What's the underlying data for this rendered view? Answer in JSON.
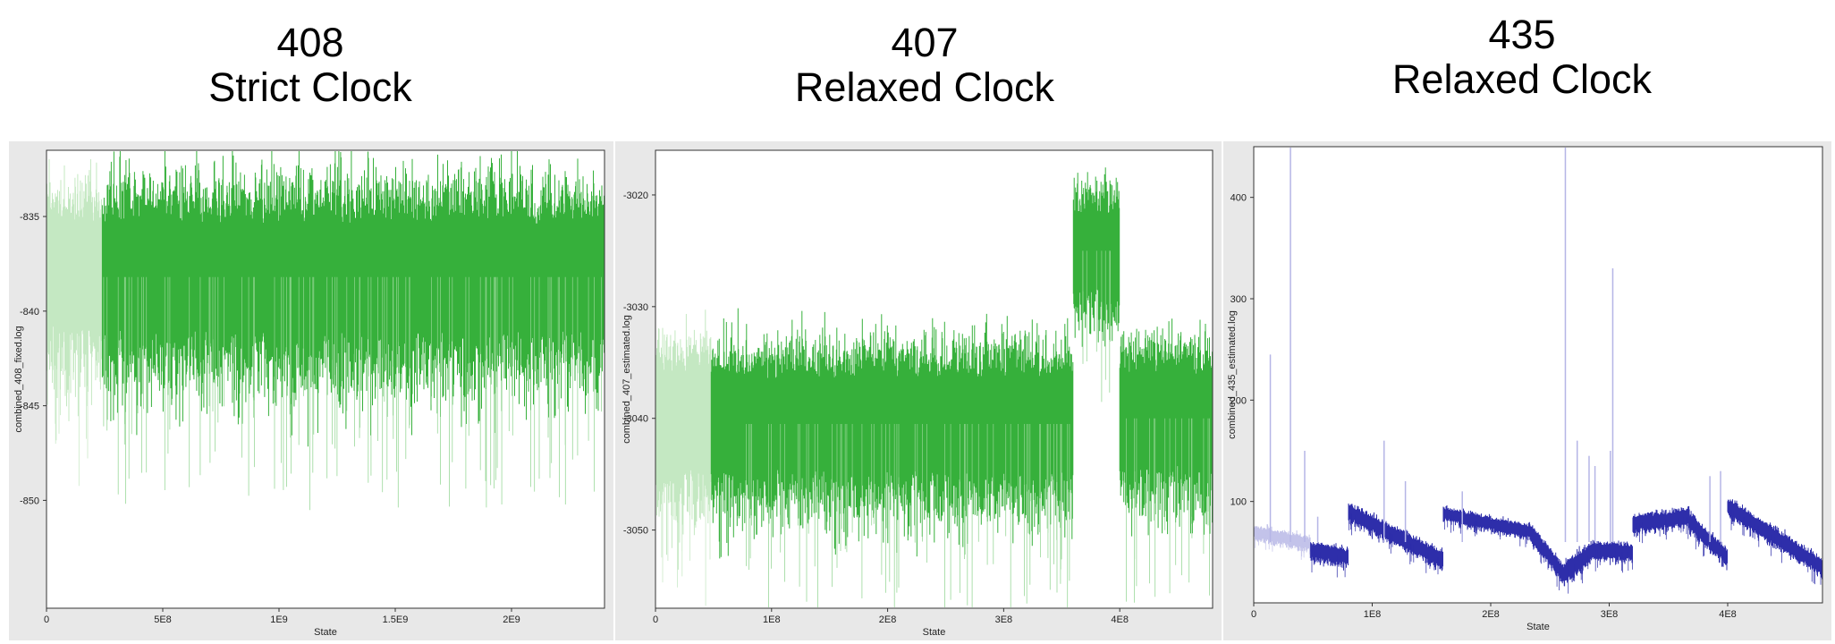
{
  "panels": [
    {
      "id": "408",
      "clock": "Strict Clock"
    },
    {
      "id": "407",
      "clock": "Relaxed Clock"
    },
    {
      "id": "435",
      "clock": "Relaxed Clock"
    }
  ],
  "chart_data": [
    {
      "type": "line",
      "title": "408 Strict Clock",
      "xlabel": "State",
      "ylabel": "combined_408_fixed.log",
      "xlim": [
        0,
        2400000000
      ],
      "ylim": [
        -855.7,
        -831.5
      ],
      "xticks": [
        {
          "v": 0,
          "label": "0"
        },
        {
          "v": 500000000,
          "label": "5E8"
        },
        {
          "v": 1000000000,
          "label": "1E9"
        },
        {
          "v": 1500000000,
          "label": "1.5E9"
        },
        {
          "v": 2000000000,
          "label": "2E9"
        }
      ],
      "yticks": [
        {
          "v": -835,
          "label": "-835"
        },
        {
          "v": -840,
          "label": "-840"
        },
        {
          "v": -845,
          "label": "-845"
        },
        {
          "v": -850,
          "label": "-850"
        }
      ],
      "burnin_end": 240000000,
      "trace_color": "#36b03b",
      "burnin_color": "#c4e8c2",
      "segments": [
        {
          "x": [
            0,
            240000000
          ],
          "mean": -838.0,
          "spread": 2.6,
          "burnin": true
        },
        {
          "x": [
            240000000,
            2400000000
          ],
          "mean": -838.2,
          "spread": 2.8,
          "burnin": false
        }
      ]
    },
    {
      "type": "line",
      "title": "407 Relaxed Clock",
      "xlabel": "State",
      "ylabel": "combined_407_estimated.log",
      "xlim": [
        0,
        480000000
      ],
      "ylim": [
        -3057,
        -3016
      ],
      "xticks": [
        {
          "v": 0,
          "label": "0"
        },
        {
          "v": 100000000,
          "label": "1E8"
        },
        {
          "v": 200000000,
          "label": "2E8"
        },
        {
          "v": 300000000,
          "label": "3E8"
        },
        {
          "v": 400000000,
          "label": "4E8"
        }
      ],
      "yticks": [
        {
          "v": -3020,
          "label": "-3020"
        },
        {
          "v": -3030,
          "label": "-3030"
        },
        {
          "v": -3040,
          "label": "-3040"
        },
        {
          "v": -3050,
          "label": "-3050"
        }
      ],
      "burnin_end": 48000000,
      "trace_color": "#36b03b",
      "burnin_color": "#c4e8c2",
      "segments": [
        {
          "x": [
            0,
            48000000
          ],
          "mean": -3040.0,
          "spread": 4.0,
          "burnin": true
        },
        {
          "x": [
            48000000,
            360000000
          ],
          "mean": -3040.5,
          "spread": 4.0,
          "burnin": false
        },
        {
          "x": [
            360000000,
            400000000
          ],
          "mean": -3025.0,
          "spread": 3.2,
          "burnin": false
        },
        {
          "x": [
            400000000,
            480000000
          ],
          "mean": -3040.0,
          "spread": 4.0,
          "burnin": false
        }
      ]
    },
    {
      "type": "line",
      "title": "435 Relaxed Clock",
      "xlabel": "State",
      "ylabel": "combined_435_estimated.log",
      "xlim": [
        0,
        480000000
      ],
      "ylim": [
        0,
        450
      ],
      "xticks": [
        {
          "v": 0,
          "label": "0"
        },
        {
          "v": 100000000,
          "label": "1E8"
        },
        {
          "v": 200000000,
          "label": "2E8"
        },
        {
          "v": 300000000,
          "label": "3E8"
        },
        {
          "v": 400000000,
          "label": "4E8"
        }
      ],
      "yticks": [
        {
          "v": 100,
          "label": "100"
        },
        {
          "v": 200,
          "label": "200"
        },
        {
          "v": 300,
          "label": "300"
        },
        {
          "v": 400,
          "label": "400"
        }
      ],
      "burnin_end": 48000000,
      "trace_color": "#2e2eaa",
      "burnin_color": "#c3c3ea",
      "segments": [
        {
          "x": [
            0,
            48000000
          ],
          "start": 70,
          "end": 58,
          "spread": 4,
          "burnin": true
        },
        {
          "x": [
            48000000,
            80000000
          ],
          "start": 52,
          "end": 45,
          "spread": 5,
          "burnin": false
        },
        {
          "x": [
            80000000,
            160000000
          ],
          "start": 90,
          "end": 42,
          "spread": 5,
          "burnin": false
        },
        {
          "x": [
            160000000,
            232000000
          ],
          "start": 88,
          "end": 70,
          "spread": 4,
          "burnin": false
        },
        {
          "x": [
            232000000,
            262000000
          ],
          "start": 72,
          "end": 28,
          "spread": 5,
          "burnin": false
        },
        {
          "x": [
            262000000,
            285000000
          ],
          "start": 30,
          "end": 50,
          "spread": 6,
          "burnin": false
        },
        {
          "x": [
            285000000,
            320000000
          ],
          "start": 52,
          "end": 50,
          "spread": 5,
          "burnin": false
        },
        {
          "x": [
            320000000,
            368000000
          ],
          "start": 78,
          "end": 85,
          "spread": 5,
          "burnin": false
        },
        {
          "x": [
            368000000,
            400000000
          ],
          "start": 80,
          "end": 45,
          "spread": 5,
          "burnin": false
        },
        {
          "x": [
            400000000,
            480000000
          ],
          "start": 95,
          "end": 35,
          "spread": 5,
          "burnin": false
        }
      ],
      "spikes": [
        {
          "x": 14000000,
          "y": 245
        },
        {
          "x": 31000000,
          "y": 450
        },
        {
          "x": 43000000,
          "y": 150
        },
        {
          "x": 54000000,
          "y": 85
        },
        {
          "x": 110000000,
          "y": 160
        },
        {
          "x": 128000000,
          "y": 120
        },
        {
          "x": 176000000,
          "y": 110
        },
        {
          "x": 263000000,
          "y": 450
        },
        {
          "x": 273000000,
          "y": 160
        },
        {
          "x": 283000000,
          "y": 145
        },
        {
          "x": 288000000,
          "y": 135
        },
        {
          "x": 301000000,
          "y": 150
        },
        {
          "x": 303000000,
          "y": 330
        },
        {
          "x": 385000000,
          "y": 125
        },
        {
          "x": 394000000,
          "y": 130
        }
      ]
    }
  ]
}
